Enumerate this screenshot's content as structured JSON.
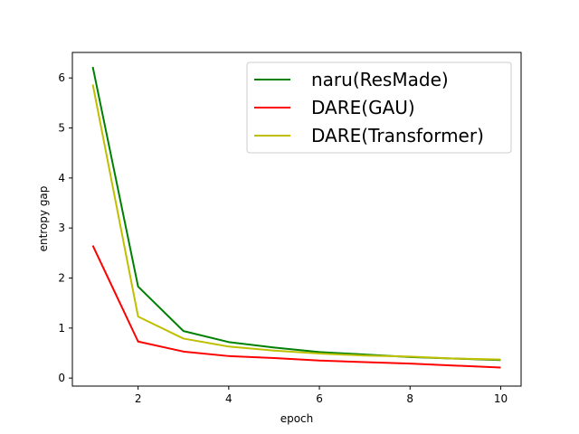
{
  "chart_data": {
    "type": "line",
    "title": "",
    "xlabel": "epoch",
    "ylabel": "entropy gap",
    "xlim": [
      0.55,
      10.45
    ],
    "ylim": [
      -0.16,
      6.51
    ],
    "xticks": [
      2,
      4,
      6,
      8,
      10
    ],
    "yticks": [
      0,
      1,
      2,
      3,
      4,
      5,
      6
    ],
    "grid": false,
    "legend_position": "top-right",
    "x": [
      1,
      2,
      3,
      4,
      5,
      6,
      7,
      8,
      9,
      10
    ],
    "series": [
      {
        "name": "naru(ResMade)",
        "color": "#008000",
        "values": [
          6.22,
          1.83,
          0.94,
          0.72,
          0.61,
          0.52,
          0.47,
          0.42,
          0.39,
          0.36
        ]
      },
      {
        "name": "DARE(GAU)",
        "color": "#ff0000",
        "values": [
          2.65,
          0.73,
          0.53,
          0.44,
          0.4,
          0.35,
          0.32,
          0.29,
          0.25,
          0.21
        ]
      },
      {
        "name": "DARE(Transformer)",
        "color": "#bfbf00",
        "values": [
          5.87,
          1.23,
          0.79,
          0.63,
          0.55,
          0.49,
          0.45,
          0.43,
          0.39,
          0.37
        ]
      }
    ]
  }
}
